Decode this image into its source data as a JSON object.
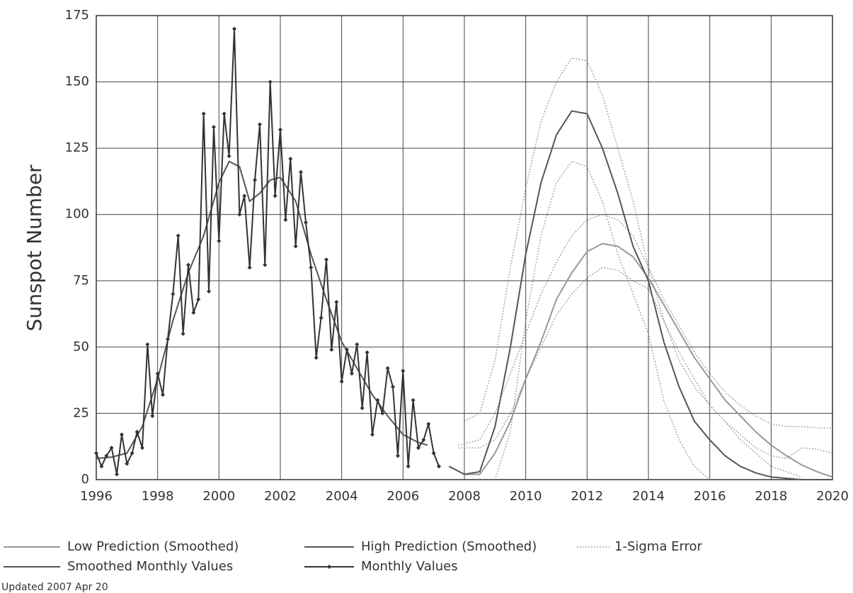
{
  "chart_data": {
    "type": "line",
    "y_label": "Sunspot Number",
    "footnote": "Updated 2007 Apr 20",
    "xlim": [
      1996,
      2020
    ],
    "xticks": [
      1996,
      1998,
      2000,
      2002,
      2004,
      2006,
      2008,
      2010,
      2012,
      2014,
      2016,
      2018,
      2020
    ],
    "ylim": [
      0,
      175
    ],
    "yticks": [
      0,
      25,
      50,
      75,
      100,
      125,
      150,
      175
    ],
    "grid": true,
    "series": [
      {
        "name": "Low Prediction (Smoothed)",
        "color": "#999999",
        "style": "solid",
        "x": [
          2007.5,
          2008,
          2008.5,
          2009,
          2009.5,
          2010,
          2010.5,
          2011,
          2011.5,
          2012,
          2012.5,
          2013,
          2013.5,
          2014,
          2014.5,
          2015,
          2015.5,
          2016,
          2016.5,
          2017,
          2017.5,
          2018,
          2018.5,
          2019,
          2019.5,
          2020
        ],
        "values": [
          5,
          2,
          2,
          10,
          22,
          38,
          52,
          68,
          78,
          86,
          89,
          88,
          84,
          76,
          66,
          56,
          46,
          38,
          30,
          24,
          18,
          13,
          9,
          5.5,
          3,
          1
        ]
      },
      {
        "name": "High Prediction (Smoothed)",
        "color": "#555555",
        "style": "solid",
        "x": [
          2007.5,
          2008,
          2008.5,
          2009,
          2009.5,
          2010,
          2010.5,
          2011,
          2011.5,
          2012,
          2012.5,
          2013,
          2013.5,
          2014,
          2014.5,
          2015,
          2015.5,
          2016,
          2016.5,
          2017,
          2017.5,
          2018,
          2019,
          2020
        ],
        "values": [
          5,
          2,
          3,
          20,
          50,
          85,
          112,
          130,
          139,
          138,
          125,
          108,
          88,
          75,
          52,
          35,
          22,
          15,
          9,
          5,
          2.5,
          1,
          0,
          0
        ]
      },
      {
        "name": "1-Sigma Error",
        "color": "#777777",
        "style": "dotted",
        "bands": [
          {
            "x": [
              2008,
              2008.5,
              2009,
              2009.5,
              2010,
              2010.5,
              2011,
              2011.5,
              2012,
              2012.5,
              2013,
              2013.5,
              2014,
              2014.5,
              2015,
              2015.5,
              2016,
              2016.5,
              2017,
              2017.5,
              2018,
              2018.5,
              2019
            ],
            "values": [
              22,
              25,
              45,
              80,
              110,
              135,
              150,
              159,
              158,
              145,
              125,
              105,
              80,
              60,
              45,
              35,
              28,
              22,
              15,
              10,
              5,
              3,
              1
            ]
          },
          {
            "x": [
              2009,
              2009.5,
              2010,
              2010.5,
              2011,
              2011.5,
              2012,
              2012.5,
              2013,
              2013.5,
              2014,
              2014.5,
              2015,
              2015.5,
              2016
            ],
            "values": [
              0,
              18,
              60,
              92,
              112,
              120,
              118,
              105,
              85,
              70,
              55,
              30,
              15,
              5,
              0
            ]
          },
          {
            "x": [
              2007.8,
              2008.5,
              2009,
              2009.5,
              2010,
              2010.5,
              2011,
              2011.5,
              2012,
              2012.5,
              2013,
              2013.5,
              2014,
              2014.5,
              2015,
              2015.5,
              2016,
              2016.5,
              2017,
              2017.5,
              2018,
              2018.5,
              2019,
              2019.5,
              2020
            ],
            "values": [
              13,
              15,
              25,
              40,
              55,
              70,
              82,
              92,
              98,
              100,
              98,
              92,
              80,
              68,
              58,
              48,
              40,
              33,
              28,
              24,
              21,
              20,
              20,
              19.5,
              19.5
            ]
          },
          {
            "x": [
              2007.8,
              2008.5,
              2009,
              2009.5,
              2010,
              2010.5,
              2011,
              2011.5,
              2012,
              2012.5,
              2013,
              2013.5,
              2014,
              2014.5,
              2015,
              2015.5,
              2016,
              2016.5,
              2017,
              2017.5,
              2018,
              2018.5,
              2019,
              2019.5,
              2020
            ],
            "values": [
              12,
              12,
              15,
              25,
              38,
              50,
              62,
              70,
              76,
              80,
              79,
              75,
              72,
              60,
              48,
              38,
              28,
              22,
              17,
              12,
              9,
              8,
              12,
              11.5,
              10
            ]
          }
        ]
      },
      {
        "name": "Smoothed Monthly Values",
        "color": "#555555",
        "style": "solid",
        "x": [
          1996,
          1996.5,
          1997,
          1997.5,
          1998,
          1998.5,
          1999,
          1999.5,
          2000,
          2000.33,
          2000.67,
          2001,
          2001.33,
          2001.67,
          2002,
          2002.5,
          2003,
          2003.5,
          2004,
          2004.5,
          2005,
          2005.5,
          2006,
          2006.5,
          2006.8
        ],
        "values": [
          8,
          8.5,
          10,
          20,
          38,
          60,
          78,
          92,
          112,
          120,
          118,
          105,
          108,
          113,
          114,
          105,
          85,
          68,
          52,
          42,
          32,
          24,
          17,
          14,
          13
        ]
      },
      {
        "name": "Monthly Values",
        "color": "#333333",
        "style": "marker",
        "x": [
          1996.0,
          1996.17,
          1996.33,
          1996.5,
          1996.67,
          1996.83,
          1997.0,
          1997.17,
          1997.33,
          1997.5,
          1997.67,
          1997.83,
          1998.0,
          1998.17,
          1998.33,
          1998.5,
          1998.67,
          1998.83,
          1999.0,
          1999.17,
          1999.33,
          1999.5,
          1999.67,
          1999.83,
          2000.0,
          2000.17,
          2000.33,
          2000.5,
          2000.67,
          2000.83,
          2001.0,
          2001.17,
          2001.33,
          2001.5,
          2001.67,
          2001.83,
          2002.0,
          2002.17,
          2002.33,
          2002.5,
          2002.67,
          2002.83,
          2003.0,
          2003.17,
          2003.33,
          2003.5,
          2003.67,
          2003.83,
          2004.0,
          2004.17,
          2004.33,
          2004.5,
          2004.67,
          2004.83,
          2005.0,
          2005.17,
          2005.33,
          2005.5,
          2005.67,
          2005.83,
          2006.0,
          2006.17,
          2006.33,
          2006.5,
          2006.67,
          2006.83,
          2007.0,
          2007.17
        ],
        "values": [
          10,
          5,
          9,
          12,
          2,
          17,
          6,
          10,
          18,
          12,
          51,
          24,
          40,
          32,
          53,
          70,
          92,
          55,
          81,
          63,
          68,
          138,
          71,
          133,
          90,
          138,
          122,
          170,
          100,
          107,
          80,
          113,
          134,
          81,
          150,
          107,
          132,
          98,
          121,
          88,
          116,
          97,
          80,
          46,
          61,
          83,
          49,
          67,
          37,
          49,
          40,
          51,
          27,
          48,
          17,
          30,
          25,
          42,
          35,
          9,
          41,
          5,
          30,
          12,
          15,
          21,
          10,
          5
        ]
      }
    ]
  }
}
